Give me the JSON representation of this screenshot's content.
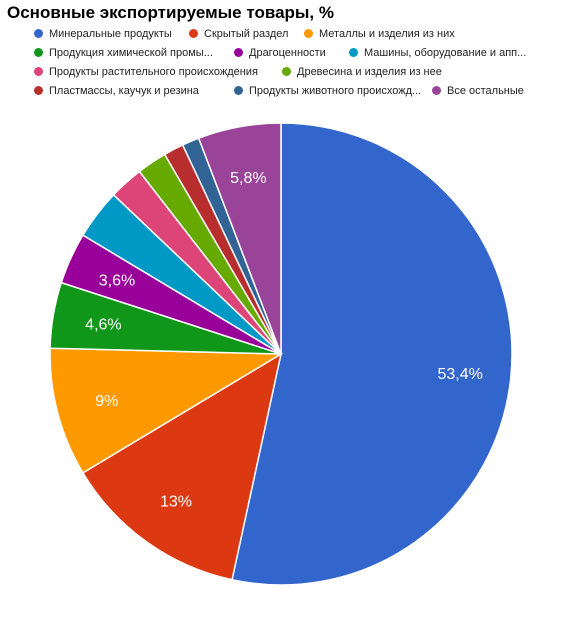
{
  "chart_data": {
    "type": "pie",
    "title": "Основные экспортируемые товары, %",
    "legend_position": "top",
    "categories": [
      "Минеральные продукты",
      "Скрытый раздел",
      "Металлы и изделия из них",
      "Продукция химической промы...",
      "Драгоценности",
      "Машины, оборудование и апп...",
      "Продукты растительного происхождения",
      "Древесина и изделия из нее",
      "Пластмассы, каучук и резина",
      "Продукты животного происхожд...",
      "Все остальные"
    ],
    "values": [
      53.4,
      13,
      9,
      4.6,
      3.6,
      3.5,
      2.4,
      2.1,
      1.4,
      1.2,
      5.8
    ],
    "data_labels": [
      "53,4%",
      "13%",
      "9%",
      "4,6%",
      "3,6%",
      "",
      "",
      "",
      "",
      "",
      "5,8%"
    ],
    "colors": [
      "#3366cc",
      "#dc3912",
      "#ff9900",
      "#109618",
      "#990099",
      "#0099c6",
      "#dd4477",
      "#66aa00",
      "#b82e2e",
      "#316395",
      "#994499"
    ]
  }
}
